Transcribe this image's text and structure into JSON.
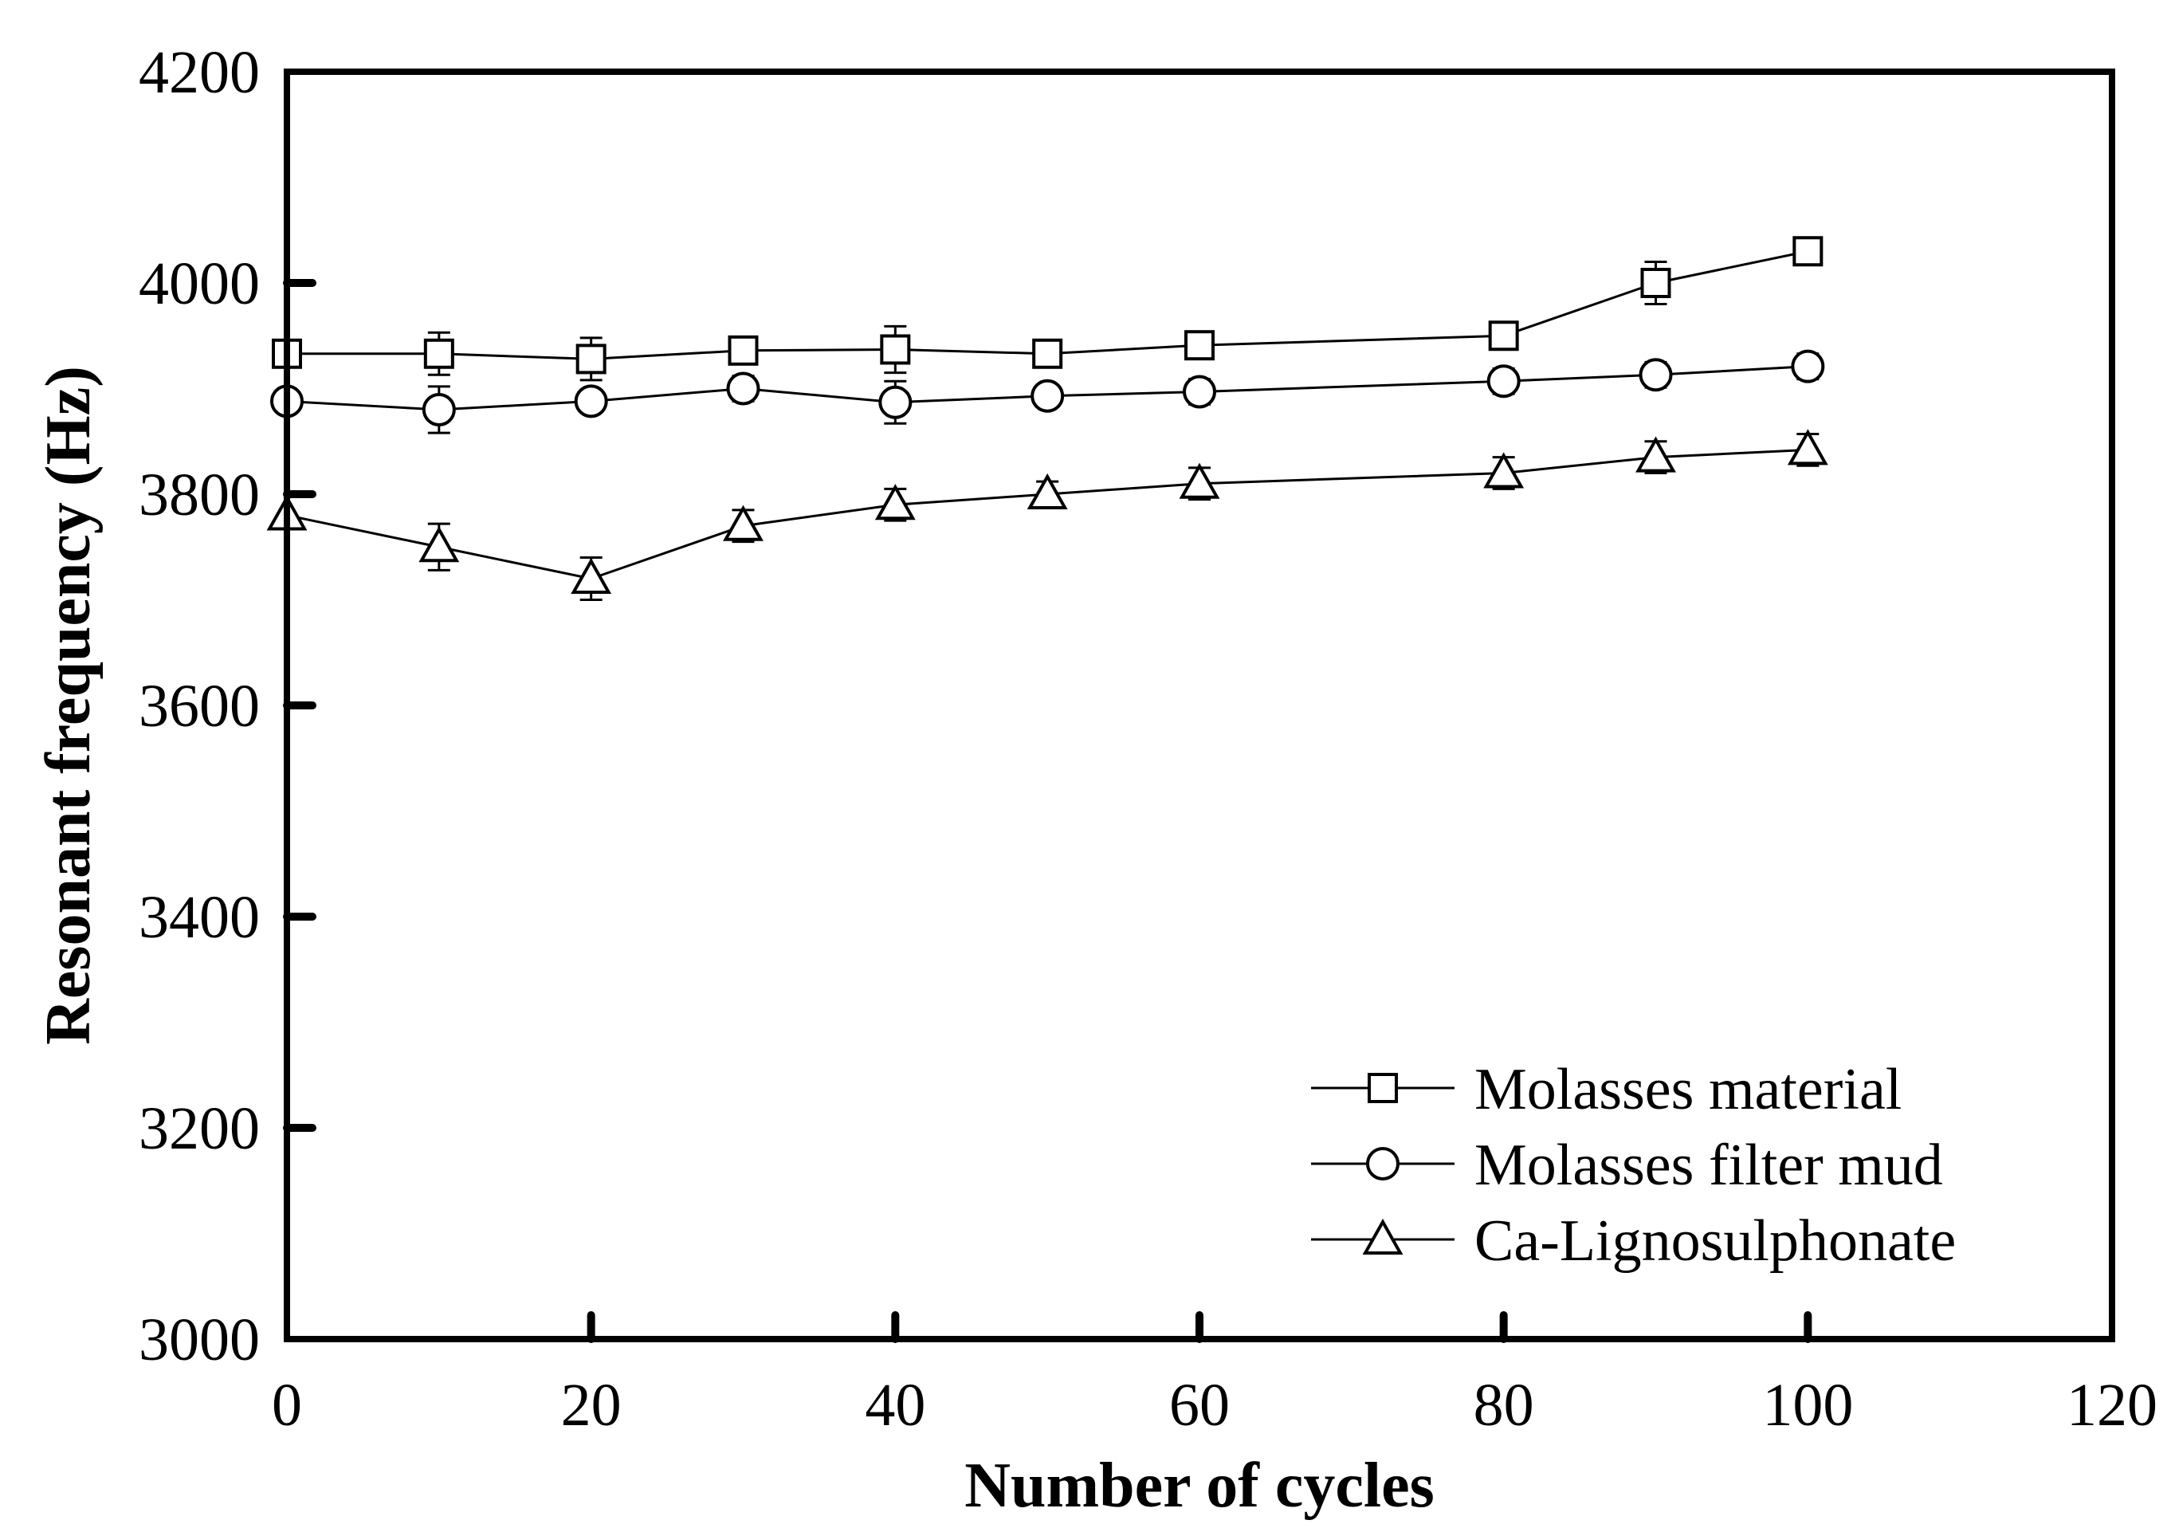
{
  "chart_data": {
    "type": "line",
    "title": "",
    "xlabel": "Number of cycles",
    "ylabel": "Resonant frequency (Hz)",
    "xlim": [
      0,
      120
    ],
    "ylim": [
      3000,
      4200
    ],
    "xticks": [
      0,
      20,
      40,
      60,
      80,
      100,
      120
    ],
    "yticks": [
      3000,
      3200,
      3400,
      3600,
      3800,
      4000,
      4200
    ],
    "grid": false,
    "legend_position": "bottom-right",
    "series": [
      {
        "name": "Molasses material",
        "marker": "square",
        "x": [
          0,
          10,
          20,
          30,
          40,
          50,
          60,
          80,
          90,
          100
        ],
        "y": [
          3933,
          3933,
          3928,
          3936,
          3937,
          3933,
          3941,
          3950,
          4000,
          4030
        ],
        "err": [
          0,
          20,
          20,
          0,
          22,
          0,
          0,
          0,
          20,
          0
        ]
      },
      {
        "name": "Molasses filter mud",
        "marker": "circle",
        "x": [
          0,
          10,
          20,
          30,
          40,
          50,
          60,
          80,
          90,
          100
        ],
        "y": [
          3888,
          3880,
          3888,
          3900,
          3887,
          3893,
          3897,
          3907,
          3913,
          3921
        ],
        "err": [
          0,
          22,
          10,
          12,
          20,
          10,
          12,
          12,
          12,
          12
        ]
      },
      {
        "name": "Ca-Lignosulphonate",
        "marker": "triangle",
        "x": [
          0,
          10,
          20,
          30,
          40,
          50,
          60,
          80,
          90,
          100
        ],
        "y": [
          3780,
          3750,
          3720,
          3770,
          3790,
          3800,
          3810,
          3820,
          3835,
          3842
        ],
        "err": [
          0,
          22,
          20,
          15,
          15,
          12,
          15,
          15,
          15,
          15
        ]
      }
    ]
  }
}
